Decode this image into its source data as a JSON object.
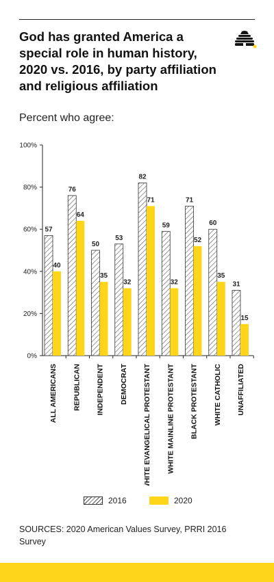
{
  "header": {
    "title": "God has granted America a special role in human history, 2020 vs. 2016, by party affiliation and religious affiliation",
    "subtitle": "Percent who agree:",
    "logo_icon": "beehive-icon"
  },
  "colors": {
    "accent": "#ffd51a",
    "hatch": "#555555",
    "text": "#1a1a1a"
  },
  "chart_data": {
    "type": "bar",
    "title": "God has granted America a special role in human history, 2020 vs. 2016, by party affiliation and religious affiliation",
    "subtitle": "Percent who agree:",
    "categories": [
      "ALL AMERICANS",
      "REPUBLICAN",
      "INDEPENDENT",
      "DEMOCRAT",
      "WHITE EVANGELICAL PROTESTANT",
      "WHITE MAINLINE PROTESTANT",
      "BLACK PROTESTANT",
      "WHITE CATHOLIC",
      "UNAFFILIATED"
    ],
    "series": [
      {
        "name": "2016",
        "values": [
          57,
          76,
          50,
          53,
          82,
          59,
          71,
          60,
          31
        ],
        "style": "hatched"
      },
      {
        "name": "2020",
        "values": [
          40,
          64,
          35,
          32,
          71,
          32,
          52,
          35,
          15
        ],
        "style": "solid",
        "color": "#ffd51a"
      }
    ],
    "ylim": [
      0,
      100
    ],
    "yticks": [
      0,
      20,
      40,
      60,
      80,
      100
    ],
    "ytick_labels": [
      "0%",
      "20%",
      "40%",
      "60%",
      "80%",
      "100%"
    ],
    "grid": false,
    "legend_position": "bottom"
  },
  "legend": {
    "items": [
      {
        "label": "2016"
      },
      {
        "label": "2020"
      }
    ]
  },
  "footer": {
    "sources": "SOURCES: 2020 American Values Survey, PRRI 2016 Survey"
  }
}
